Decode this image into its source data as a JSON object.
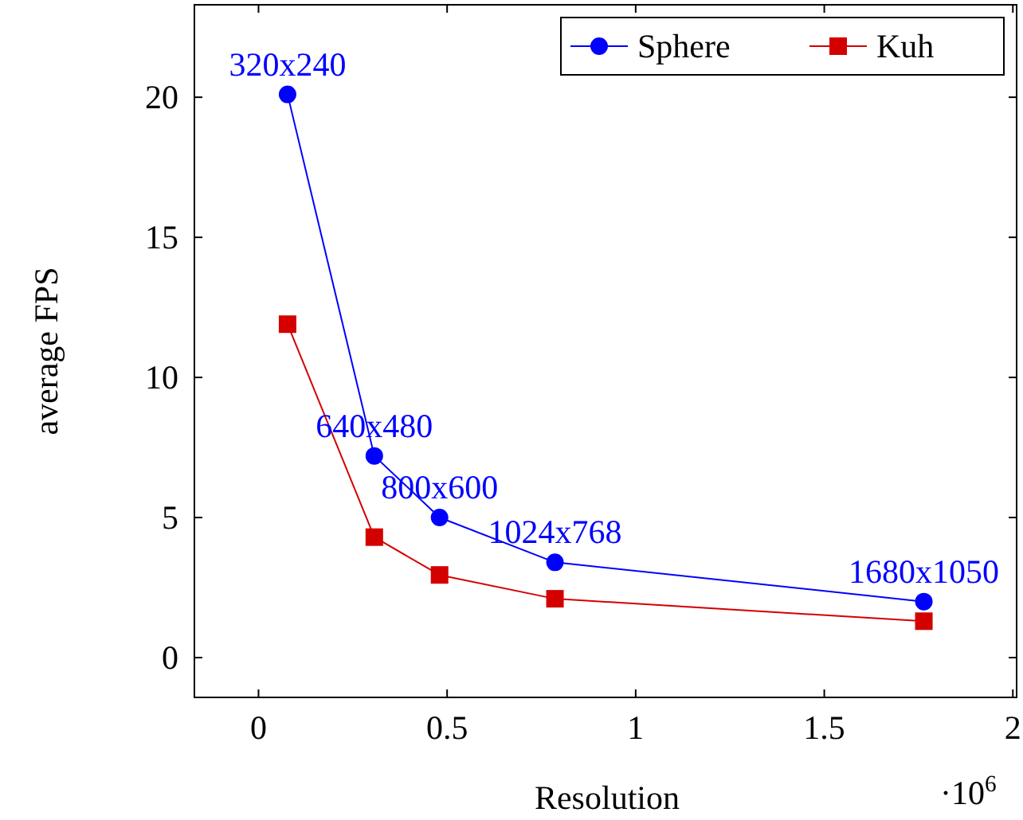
{
  "chart_data": {
    "type": "line",
    "xlabel": "Resolution",
    "ylabel": "average FPS",
    "xlim": [
      -0.17,
      2.01
    ],
    "ylim": [
      -1.42,
      23.3
    ],
    "xticks": [
      0,
      0.5,
      1,
      1.5,
      2
    ],
    "yticks": [
      0,
      5,
      10,
      15,
      20
    ],
    "grid": false,
    "legend": "top right",
    "line_style": "solid",
    "series": [
      {
        "name": "Sphere",
        "color": "#0000ff",
        "marker": "circle",
        "x": [
          0.077,
          0.307,
          0.48,
          0.786,
          1.764
        ],
        "values": [
          20.1,
          7.2,
          5.0,
          3.4,
          2.0
        ]
      },
      {
        "name": "Kuh",
        "color": "#d40000",
        "marker": "square",
        "x": [
          0.077,
          0.307,
          0.48,
          0.786,
          1.764
        ],
        "values": [
          11.9,
          4.3,
          2.95,
          2.1,
          1.3
        ]
      }
    ],
    "annotations": [
      {
        "text": "320x240",
        "x": 0.077,
        "y": 20.1
      },
      {
        "text": "640x480",
        "x": 0.307,
        "y": 7.2
      },
      {
        "text": "800x600",
        "x": 0.48,
        "y": 5.0
      },
      {
        "text": "1024x768",
        "x": 0.786,
        "y": 3.4
      },
      {
        "text": "1680x1050",
        "x": 1.764,
        "y": 2.0
      },
      "·10$^{6}$"
    ]
  }
}
